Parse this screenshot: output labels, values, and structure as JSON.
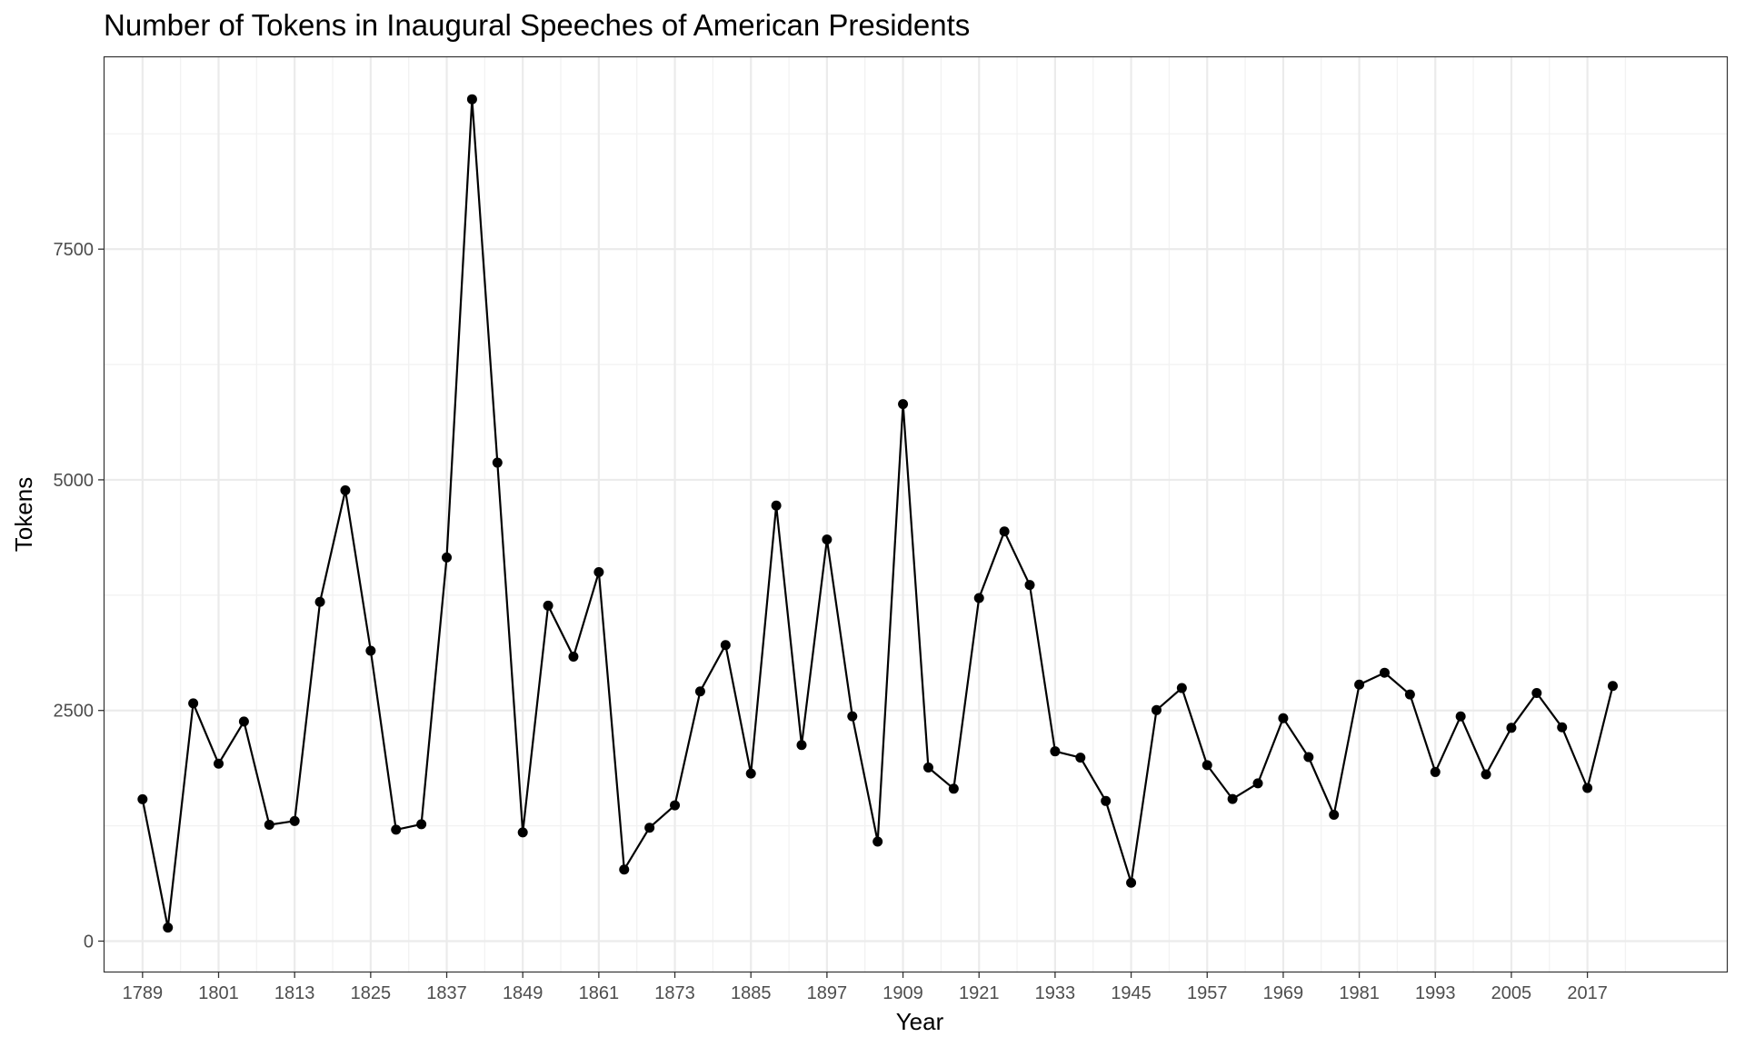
{
  "chart_data": {
    "type": "line",
    "title": "Number of Tokens in Inaugural Speeches of American Presidents",
    "xlabel": "Year",
    "ylabel": "Tokens",
    "x_ticks": [
      1789,
      1801,
      1813,
      1825,
      1837,
      1849,
      1861,
      1873,
      1885,
      1897,
      1909,
      1921,
      1933,
      1945,
      1957,
      1969,
      1981,
      1993,
      2005,
      2017
    ],
    "y_ticks": [
      0,
      2500,
      5000,
      7500
    ],
    "xlim": [
      1783,
      2039
    ],
    "ylim": [
      -330,
      9580
    ],
    "grid": true,
    "marker": "point",
    "series": [
      {
        "x": [
          1789,
          1793,
          1797,
          1801,
          1805,
          1809,
          1813,
          1817,
          1821,
          1825,
          1829,
          1833,
          1837,
          1841,
          1845,
          1849,
          1853,
          1857,
          1861,
          1865,
          1869,
          1873,
          1877,
          1881,
          1885,
          1889,
          1893,
          1897,
          1901,
          1905,
          1909,
          1913,
          1917,
          1921,
          1925,
          1929,
          1933,
          1937,
          1941,
          1945,
          1949,
          1953,
          1957,
          1961,
          1965,
          1969,
          1973,
          1977,
          1981,
          1985,
          1989,
          1993,
          1997,
          2001,
          2005,
          2009,
          2013,
          2017,
          2021
        ],
        "values": [
          1538,
          147,
          2577,
          1923,
          2380,
          1261,
          1302,
          3677,
          4886,
          3147,
          1208,
          1267,
          4158,
          9125,
          5186,
          1178,
          3636,
          3083,
          3999,
          776,
          1229,
          1472,
          2707,
          3209,
          1816,
          4721,
          2125,
          4353,
          2437,
          1079,
          5821,
          1882,
          1652,
          3719,
          4440,
          3860,
          2057,
          1989,
          1519,
          633,
          2504,
          2743,
          1907,
          1541,
          1710,
          2416,
          1995,
          1369,
          2780,
          2909,
          2673,
          1833,
          2436,
          1808,
          2312,
          2689,
          2317,
          1660,
          2766
        ]
      }
    ],
    "colors": {
      "line": "#000000",
      "point": "#000000",
      "panel_border": "#333333",
      "grid_major": "#ebebeb",
      "grid_minor": "#f2f2f2",
      "tick_text": "#4d4d4d"
    }
  }
}
